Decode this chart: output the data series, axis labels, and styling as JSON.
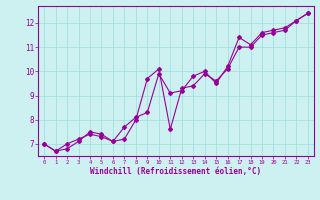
{
  "xlabel": "Windchill (Refroidissement éolien,°C)",
  "bg_color": "#cdf0f0",
  "line_color": "#990099",
  "grid_color": "#99dddd",
  "line1_x": [
    0,
    1,
    2,
    3,
    4,
    5,
    6,
    7,
    8,
    9,
    10,
    11,
    12,
    13,
    14,
    15,
    16,
    17,
    18,
    19,
    20,
    21,
    22,
    23
  ],
  "line1_y": [
    7.0,
    6.7,
    6.8,
    7.1,
    7.5,
    7.4,
    7.1,
    7.2,
    8.0,
    9.7,
    10.1,
    7.6,
    9.3,
    9.4,
    9.9,
    9.6,
    10.1,
    11.0,
    11.0,
    11.5,
    11.6,
    11.7,
    12.1,
    12.4
  ],
  "line2_x": [
    0,
    1,
    2,
    3,
    4,
    5,
    6,
    7,
    8,
    9,
    10,
    11,
    12,
    13,
    14,
    15,
    16,
    17,
    18,
    19,
    20,
    21,
    22,
    23
  ],
  "line2_y": [
    7.0,
    6.7,
    7.0,
    7.2,
    7.4,
    7.3,
    7.1,
    7.7,
    8.1,
    8.3,
    9.9,
    9.1,
    9.2,
    9.8,
    10.0,
    9.5,
    10.2,
    11.4,
    11.1,
    11.6,
    11.7,
    11.8,
    12.1,
    12.4
  ],
  "xlim": [
    -0.5,
    23.5
  ],
  "ylim": [
    6.5,
    12.7
  ],
  "yticks": [
    7,
    8,
    9,
    10,
    11,
    12
  ],
  "xticks": [
    0,
    1,
    2,
    3,
    4,
    5,
    6,
    7,
    8,
    9,
    10,
    11,
    12,
    13,
    14,
    15,
    16,
    17,
    18,
    19,
    20,
    21,
    22,
    23
  ],
  "xtick_labels": [
    "0",
    "1",
    "2",
    "3",
    "4",
    "5",
    "6",
    "7",
    "8",
    "9",
    "10",
    "11",
    "12",
    "13",
    "14",
    "15",
    "16",
    "17",
    "18",
    "19",
    "20",
    "21",
    "22",
    "23"
  ],
  "marker": "D",
  "markersize": 2.0,
  "linewidth": 0.8
}
